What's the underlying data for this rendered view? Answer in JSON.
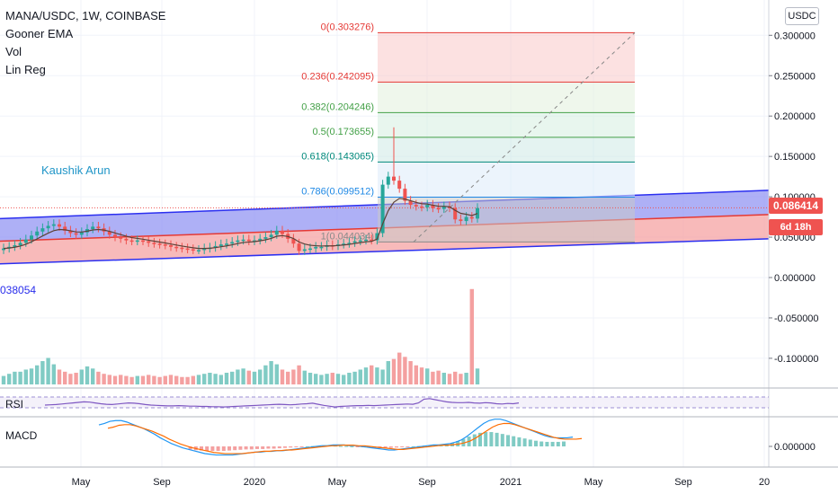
{
  "legend": {
    "symbol": "MANA/USDC, 1W, COINBASE",
    "indicator1": "Gooner EMA",
    "indicator2": "Vol",
    "indicator3": "Lin Reg"
  },
  "author": "Kaushik Arun",
  "currency_button": "USDC",
  "price_tag": "0.086414",
  "time_tag": "6d 18h",
  "volume_readout": "038054",
  "rsi_label": "RSI",
  "macd_label": "MACD",
  "colors": {
    "up": "#26a69a",
    "down": "#ef5350",
    "channel_upper": "#6a6cf0",
    "channel_lower": "#f28b8b",
    "grid": "#f0f3fa",
    "fib_line_red": "#e53935",
    "fib_line_green": "#43a047",
    "fib_line_teal": "#00897b",
    "fib_line_blue": "#1e88e5"
  },
  "chart_data": {
    "type": "candlestick",
    "x_axis": {
      "ticks": [
        "May",
        "Sep",
        "2020",
        "May",
        "Sep",
        "2021",
        "May",
        "Sep",
        "20"
      ]
    },
    "y_axis": {
      "ticks": [
        "0.300000",
        "0.250000",
        "0.200000",
        "0.150000",
        "0.100000",
        "0.050000",
        "0.000000",
        "-0.050000",
        "-0.100000"
      ],
      "ylim": [
        -0.12,
        0.32
      ]
    },
    "macd_axis": {
      "ticks": [
        "0.000000"
      ]
    },
    "fibonacci": [
      {
        "label": "0(0.303276)",
        "value": 0.303276
      },
      {
        "label": "0.236(0.242095)",
        "value": 0.242095
      },
      {
        "label": "0.382(0.204246)",
        "value": 0.204246
      },
      {
        "label": "0.5(0.173655)",
        "value": 0.173655
      },
      {
        "label": "0.618(0.143065)",
        "value": 0.143065
      },
      {
        "label": "0.786(0.099512)",
        "value": 0.099512
      },
      {
        "label": "1(0.044034)",
        "value": 0.044034
      }
    ],
    "channel": {
      "upper": [
        [
          0,
          0.073
        ],
        [
          855,
          0.108
        ]
      ],
      "middle": [
        [
          0,
          0.045
        ],
        [
          855,
          0.078
        ]
      ],
      "lower": [
        [
          0,
          0.017
        ],
        [
          855,
          0.048
        ]
      ]
    },
    "closes": [
      0.036,
      0.038,
      0.04,
      0.043,
      0.047,
      0.052,
      0.057,
      0.061,
      0.064,
      0.066,
      0.063,
      0.058,
      0.055,
      0.053,
      0.056,
      0.06,
      0.063,
      0.061,
      0.057,
      0.053,
      0.05,
      0.048,
      0.046,
      0.045,
      0.046,
      0.045,
      0.043,
      0.042,
      0.041,
      0.04,
      0.038,
      0.037,
      0.036,
      0.035,
      0.034,
      0.034,
      0.036,
      0.037,
      0.039,
      0.041,
      0.042,
      0.044,
      0.046,
      0.047,
      0.045,
      0.046,
      0.048,
      0.05,
      0.053,
      0.058,
      0.054,
      0.048,
      0.042,
      0.033,
      0.035,
      0.036,
      0.038,
      0.038,
      0.04,
      0.039,
      0.041,
      0.042,
      0.043,
      0.045,
      0.046,
      0.047,
      0.046,
      0.055,
      0.115,
      0.125,
      0.12,
      0.11,
      0.095,
      0.09,
      0.088,
      0.087,
      0.09,
      0.086,
      0.085,
      0.088,
      0.086,
      0.072,
      0.07,
      0.075,
      0.073,
      0.086
    ],
    "volume": [
      8,
      10,
      12,
      12,
      14,
      15,
      18,
      22,
      25,
      19,
      14,
      12,
      10,
      11,
      14,
      17,
      15,
      12,
      10,
      9,
      8,
      9,
      8,
      7,
      8,
      8,
      9,
      8,
      7,
      8,
      9,
      8,
      7,
      7,
      8,
      9,
      10,
      11,
      10,
      9,
      11,
      12,
      14,
      15,
      13,
      12,
      14,
      18,
      22,
      19,
      14,
      12,
      14,
      18,
      13,
      11,
      10,
      9,
      10,
      11,
      10,
      9,
      11,
      12,
      14,
      16,
      18,
      16,
      14,
      22,
      24,
      30,
      26,
      22,
      18,
      16,
      15,
      12,
      13,
      11,
      10,
      12,
      10,
      11,
      90,
      15
    ],
    "rsi": [
      50,
      51,
      52,
      54,
      56,
      58,
      60,
      62,
      61,
      58,
      55,
      53,
      52,
      54,
      56,
      58,
      57,
      55,
      52,
      50,
      49,
      48,
      47,
      47,
      48,
      47,
      46,
      46,
      45,
      45,
      44,
      44,
      43,
      44,
      45,
      46,
      47,
      48,
      49,
      50,
      51,
      52,
      53,
      52,
      51,
      52,
      54,
      55,
      57,
      53,
      49,
      46,
      43,
      45,
      46,
      47,
      48,
      48,
      49,
      48,
      49,
      50,
      51,
      52,
      53,
      54,
      53,
      58,
      72,
      74,
      70,
      66,
      62,
      60,
      59,
      59,
      60,
      58,
      57,
      59,
      58,
      55,
      54,
      56,
      55,
      58
    ],
    "macd": [
      0.003,
      0.0032,
      0.0035,
      0.0036,
      0.0036,
      0.0034,
      0.0031,
      0.0028,
      0.0025,
      0.0021,
      0.0017,
      0.0012,
      0.0008,
      0.0004,
      0.0001,
      -0.0002,
      -0.0004,
      -0.0006,
      -0.0008,
      -0.001,
      -0.0011,
      -0.0012,
      -0.0012,
      -0.0012,
      -0.0012,
      -0.0011,
      -0.001,
      -0.0009,
      -0.0008,
      -0.0008,
      -0.0007,
      -0.0007,
      -0.0006,
      -0.0006,
      -0.0005,
      -0.0004,
      -0.0003,
      -0.0002,
      -0.0001,
      0,
      0.0001,
      0.0001,
      0.0002,
      0.0002,
      0.0002,
      0.0001,
      0.0001,
      0,
      -0.0001,
      -0.0002,
      -0.0003,
      -0.0004,
      -0.0005,
      -0.0005,
      -0.0004,
      -0.0003,
      -0.0002,
      -0.0001,
      0,
      0.0001,
      0.0002,
      0.0002,
      0.0003,
      0.0004,
      0.0006,
      0.0009,
      0.0014,
      0.002,
      0.0026,
      0.0032,
      0.0036,
      0.0038,
      0.0038,
      0.0036,
      0.0033,
      0.003,
      0.0027,
      0.0024,
      0.0021,
      0.0018,
      0.0015,
      0.0013,
      0.0012,
      0.0012,
      0.0012,
      0.0013
    ]
  }
}
